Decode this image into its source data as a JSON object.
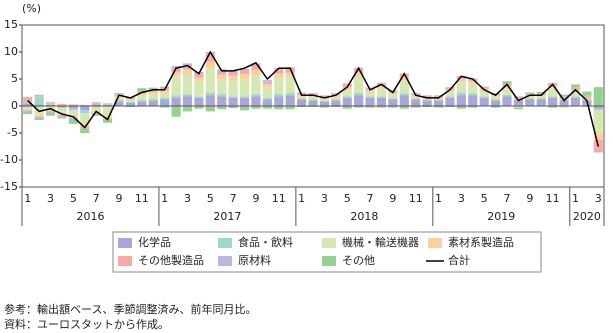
{
  "chart_data": {
    "type": "bar",
    "stacked": true,
    "y_label": "(%)",
    "categories": [
      "1",
      null,
      "3",
      null,
      "5",
      null,
      "7",
      null,
      "9",
      null,
      "11",
      null,
      "1",
      null,
      "3",
      null,
      "5",
      null,
      "7",
      null,
      "9",
      null,
      "11",
      null,
      "1",
      null,
      "3",
      null,
      "5",
      null,
      "7",
      null,
      "9",
      null,
      "11",
      null,
      "1",
      null,
      "3",
      null,
      "5",
      null,
      "7",
      null,
      "9",
      null,
      "11",
      null,
      "1",
      null,
      "3"
    ],
    "year_labels": [
      "2016",
      "2017",
      "2018",
      "2019",
      "2020"
    ],
    "ylim": [
      -15,
      15
    ],
    "yticks": [
      -15,
      -10,
      -5,
      0,
      5,
      10,
      15
    ],
    "series": [
      {
        "name": "化学品",
        "color": "#aaa6d8",
        "values": [
          0.5,
          0.3,
          0.2,
          -0.3,
          -0.5,
          -0.8,
          0.3,
          0.2,
          0.8,
          0.6,
          0.8,
          1.0,
          1.2,
          1.5,
          1.8,
          1.5,
          2.0,
          1.8,
          1.5,
          1.5,
          1.8,
          1.2,
          1.8,
          2.0,
          1.2,
          1.0,
          0.8,
          1.0,
          1.5,
          2.0,
          1.5,
          1.5,
          1.2,
          2.0,
          1.2,
          1.0,
          1.0,
          1.5,
          2.0,
          2.0,
          1.5,
          1.0,
          1.8,
          1.0,
          1.2,
          1.2,
          1.5,
          1.0,
          1.5,
          1.0,
          -0.5
        ]
      },
      {
        "name": "食品・飲料",
        "color": "#9fd6d0",
        "values": [
          0.2,
          1.5,
          0.3,
          0.2,
          -0.3,
          -0.5,
          0.2,
          0.1,
          0.3,
          0.2,
          0.3,
          0.3,
          0.3,
          0.5,
          0.4,
          0.3,
          0.5,
          0.4,
          0.3,
          0.3,
          0.4,
          0.3,
          0.4,
          0.4,
          0.2,
          0.2,
          0.2,
          0.2,
          0.3,
          0.4,
          0.3,
          0.3,
          0.2,
          0.3,
          0.2,
          0.2,
          0.2,
          0.3,
          0.4,
          0.3,
          0.3,
          0.2,
          0.3,
          0.2,
          0.2,
          0.2,
          0.3,
          0.2,
          0.3,
          0.2,
          -0.3
        ]
      },
      {
        "name": "機械・輸送機器",
        "color": "#d5e8b2",
        "values": [
          -0.5,
          -1.5,
          -0.5,
          -0.8,
          -0.8,
          -1.8,
          -0.8,
          -1.8,
          0.5,
          0.3,
          0.8,
          0.8,
          0.8,
          3.5,
          3.8,
          2.8,
          4.5,
          2.8,
          3.0,
          3.2,
          3.5,
          2.0,
          3.0,
          3.0,
          0.3,
          0.5,
          0.3,
          0.5,
          1.2,
          3.0,
          0.8,
          1.5,
          0.8,
          2.5,
          0.3,
          0.2,
          0.2,
          0.8,
          2.0,
          1.8,
          0.8,
          0.5,
          1.2,
          -0.3,
          0.3,
          0.3,
          1.5,
          -0.3,
          0.8,
          -0.2,
          -4.0
        ]
      },
      {
        "name": "素材系製造品",
        "color": "#f9d09e",
        "values": [
          -0.3,
          -0.5,
          -0.5,
          -0.6,
          -0.6,
          -0.8,
          -0.5,
          -0.6,
          0.2,
          0.2,
          0.4,
          0.5,
          0.6,
          0.8,
          0.8,
          0.7,
          1.2,
          0.8,
          0.8,
          0.9,
          1.0,
          0.6,
          0.8,
          0.8,
          0.4,
          0.3,
          0.3,
          0.3,
          0.5,
          0.8,
          0.4,
          0.5,
          0.3,
          0.6,
          0.3,
          0.2,
          0.2,
          0.4,
          0.6,
          0.5,
          0.4,
          0.3,
          0.4,
          0.2,
          0.2,
          0.3,
          0.5,
          0.2,
          0.4,
          0.3,
          -1.5
        ]
      },
      {
        "name": "その他製造品",
        "color": "#f5aba2",
        "values": [
          1.0,
          0.3,
          0.2,
          0.2,
          0.3,
          0.2,
          0.2,
          0.2,
          0.3,
          0.2,
          0.3,
          0.3,
          0.4,
          0.8,
          0.8,
          0.7,
          1.5,
          0.7,
          0.7,
          0.8,
          0.9,
          0.5,
          0.8,
          0.8,
          0.3,
          0.3,
          0.3,
          0.3,
          0.6,
          0.7,
          0.3,
          0.4,
          0.3,
          0.5,
          0.3,
          0.3,
          0.3,
          0.4,
          0.5,
          0.4,
          0.3,
          0.3,
          0.3,
          0.3,
          0.3,
          0.3,
          0.4,
          0.3,
          0.4,
          0.3,
          -2.0
        ]
      },
      {
        "name": "原材料",
        "color": "#bdb4e2",
        "values": [
          -0.2,
          -0.3,
          -0.3,
          -0.3,
          -0.3,
          -0.3,
          -0.2,
          -0.2,
          0.1,
          0.1,
          0.2,
          0.2,
          0.3,
          0.3,
          0.3,
          0.3,
          0.3,
          0.3,
          0.2,
          0.2,
          0.3,
          0.2,
          0.2,
          0.2,
          0.1,
          0.1,
          0.1,
          0.1,
          0.1,
          0.2,
          0.1,
          0.1,
          0.1,
          0.1,
          0.1,
          0.1,
          0.1,
          0.1,
          0.1,
          0.1,
          0.1,
          0.1,
          0.1,
          0.1,
          0.1,
          0.1,
          0.1,
          0.1,
          0.1,
          0.1,
          -0.3
        ]
      },
      {
        "name": "その他",
        "color": "#95d18f",
        "values": [
          -0.5,
          -0.3,
          -0.5,
          -0.3,
          -0.8,
          -0.8,
          -0.3,
          -0.5,
          0.2,
          -0.2,
          0.5,
          0.3,
          -0.3,
          -2.0,
          -1.0,
          -0.5,
          -1.0,
          -0.6,
          -0.4,
          -0.8,
          -0.5,
          -0.5,
          -0.6,
          -0.6,
          -0.2,
          -0.2,
          -0.3,
          -0.2,
          -0.5,
          -0.3,
          -0.3,
          -0.3,
          -0.3,
          -0.5,
          -0.3,
          -0.2,
          -0.3,
          -0.2,
          -0.5,
          -0.3,
          0.2,
          -0.3,
          0.5,
          -0.3,
          0.2,
          0.2,
          -0.3,
          0.3,
          0.5,
          0.8,
          3.5
        ]
      }
    ],
    "line": {
      "name": "合計",
      "color": "#000000",
      "values": [
        1.0,
        -1.0,
        -0.5,
        -1.5,
        -2.0,
        -4.0,
        -1.0,
        -2.5,
        2.0,
        1.5,
        2.5,
        3.0,
        3.0,
        7.0,
        7.5,
        6.0,
        10.0,
        6.5,
        6.5,
        7.0,
        8.0,
        5.0,
        7.0,
        7.0,
        2.0,
        2.0,
        1.5,
        2.0,
        3.5,
        7.0,
        3.0,
        4.0,
        2.5,
        6.0,
        2.0,
        1.5,
        1.5,
        3.0,
        5.5,
        5.0,
        3.0,
        2.0,
        4.0,
        1.0,
        2.0,
        2.0,
        4.0,
        1.0,
        3.0,
        1.0,
        -7.5
      ]
    },
    "notes": [
      "参考：輸出額ベース、季節調整済み、前年同月比。",
      "資料：ユーロスタットから作成。"
    ]
  }
}
